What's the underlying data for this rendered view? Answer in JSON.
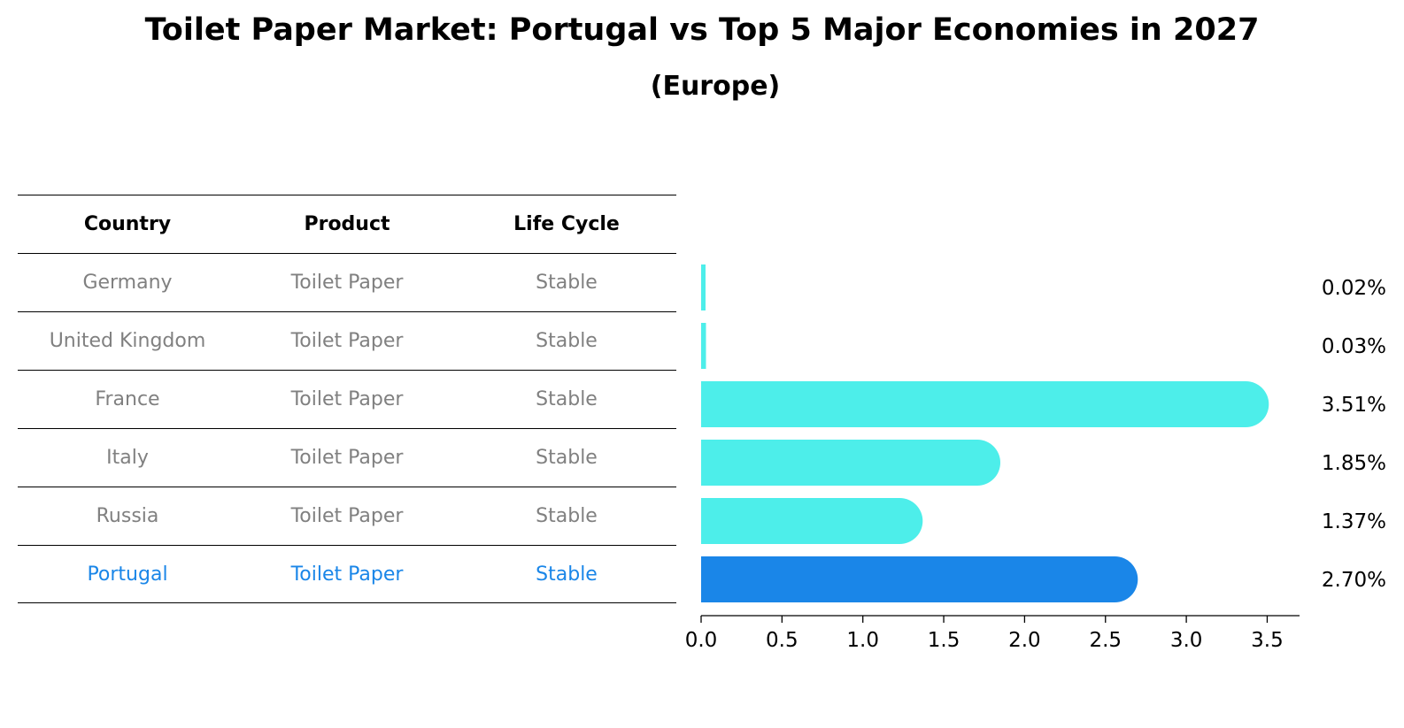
{
  "title": "Toilet Paper Market: Portugal vs Top 5 Major Economies in 2027",
  "subtitle": "(Europe)",
  "colors": {
    "bar": "#4deeea",
    "highlight": "#1a86e8",
    "text_muted": "#808080"
  },
  "table": {
    "headers": [
      "Country",
      "Product",
      "Life Cycle"
    ],
    "rows": [
      {
        "country": "Germany",
        "product": "Toilet Paper",
        "life_cycle": "Stable"
      },
      {
        "country": "United Kingdom",
        "product": "Toilet Paper",
        "life_cycle": "Stable"
      },
      {
        "country": "France",
        "product": "Toilet Paper",
        "life_cycle": "Stable"
      },
      {
        "country": "Italy",
        "product": "Toilet Paper",
        "life_cycle": "Stable"
      },
      {
        "country": "Russia",
        "product": "Toilet Paper",
        "life_cycle": "Stable"
      },
      {
        "country": "Portugal",
        "product": "Toilet Paper",
        "life_cycle": "Stable"
      }
    ],
    "highlight_row": 5
  },
  "chart_data": {
    "type": "bar",
    "orientation": "horizontal",
    "categories": [
      "Germany",
      "United Kingdom",
      "France",
      "Italy",
      "Russia",
      "Portugal"
    ],
    "values": [
      0.02,
      0.03,
      3.51,
      1.85,
      1.37,
      2.7
    ],
    "data_labels": [
      "0.02%",
      "0.03%",
      "3.51%",
      "1.85%",
      "1.37%",
      "2.70%"
    ],
    "highlight": "Portugal",
    "xlim": [
      0,
      3.7
    ],
    "xticks": [
      0.0,
      0.5,
      1.0,
      1.5,
      2.0,
      2.5,
      3.0,
      3.5
    ],
    "xtick_labels": [
      "0.0",
      "0.5",
      "1.0",
      "1.5",
      "2.0",
      "2.5",
      "3.0",
      "3.5"
    ],
    "grid": false
  }
}
